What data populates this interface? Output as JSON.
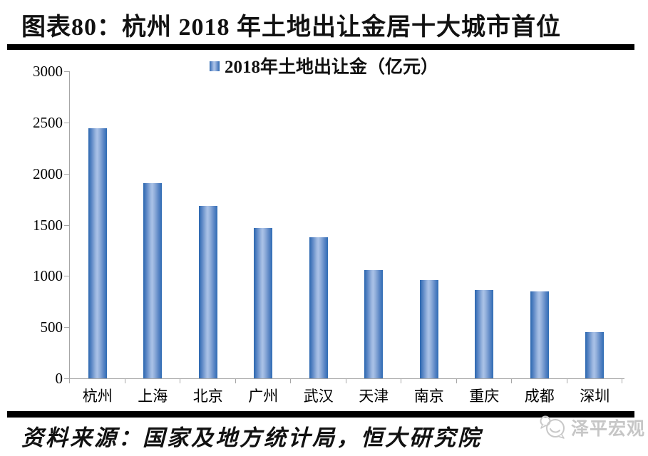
{
  "header": {
    "title": "图表80：杭州 2018 年土地出让金居十大城市首位"
  },
  "chart_data": {
    "type": "bar",
    "title": "图表80：杭州 2018 年土地出让金居十大城市首位",
    "legend": "2018年土地出让金（亿元）",
    "legend_position": "top-center",
    "categories": [
      "杭州",
      "上海",
      "北京",
      "广州",
      "武汉",
      "天津",
      "南京",
      "重庆",
      "成都",
      "深圳"
    ],
    "values": [
      2443,
      1908,
      1683,
      1470,
      1380,
      1058,
      960,
      866,
      849,
      450
    ],
    "xlabel": "",
    "ylabel": "",
    "ylim": [
      0,
      3000
    ],
    "yticks": [
      0,
      500,
      1000,
      1500,
      2000,
      2500,
      3000
    ],
    "grid": false,
    "bar_color_edge": "#2b67b0",
    "bar_color_center": "#a9c2e6",
    "axis_color": "#a6a6a6"
  },
  "footer": {
    "source": "资料来源：国家及地方统计局，恒大研究院",
    "logo_text": "泽平宏观"
  }
}
